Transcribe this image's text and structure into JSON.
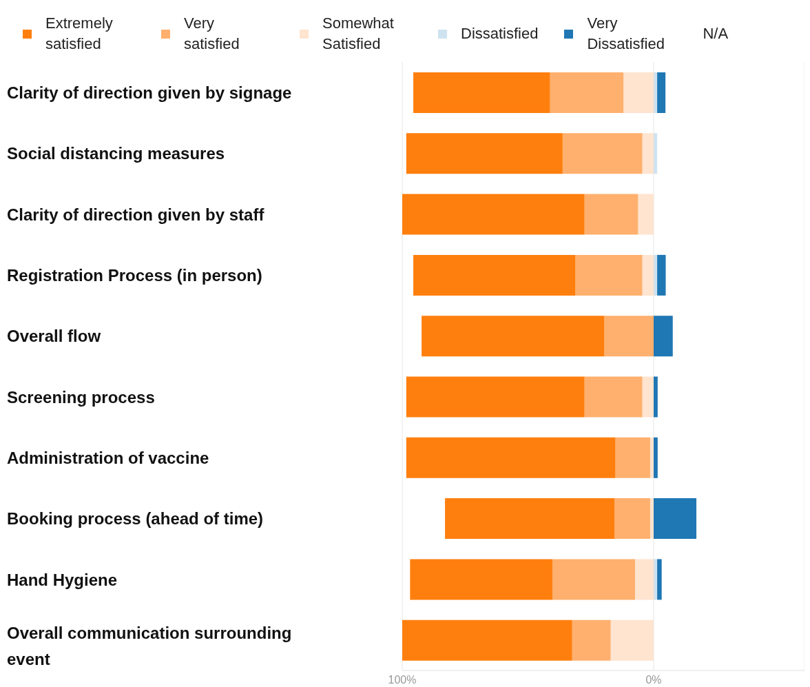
{
  "chart_data": {
    "type": "bar",
    "orientation": "horizontal",
    "stacked": true,
    "categories": [
      "Clarity of direction given by signage",
      "Social distancing measures",
      "Clarity of direction given by staff",
      "Registration Process (in person)",
      "Overall flow",
      "Screening process",
      "Administration of vaccine",
      "Booking process (ahead of time)",
      "Hand Hygiene",
      "Overall communication surrounding event"
    ],
    "series": [
      {
        "name": "Somewhat Satisfied",
        "color": "#ffe4cf",
        "values": [
          -12.0,
          -4.5,
          -6.2,
          -4.5,
          0,
          -4.5,
          -1.4,
          -1.4,
          -7.4,
          -17.1
        ]
      },
      {
        "name": "Very satisfied",
        "color": "#ffb06e",
        "values": [
          -29.2,
          -31.7,
          -21.3,
          -26.6,
          -19.6,
          -23.0,
          -13.8,
          -14.1,
          -32.8,
          -15.3
        ]
      },
      {
        "name": "Extremely satisfied",
        "color": "#ff7f0e",
        "values": [
          -54.4,
          -62.2,
          -72.5,
          -64.5,
          -72.7,
          -70.9,
          -83.2,
          -67.5,
          -56.7,
          -67.6
        ]
      },
      {
        "name": "Dissatisfied",
        "color": "#cfe2f0",
        "values": [
          1.4,
          1.4,
          0,
          1.4,
          0,
          0,
          0,
          0,
          1.4,
          0
        ]
      },
      {
        "name": "Very Dissatisfied",
        "color": "#1f77b4",
        "values": [
          3.3,
          0,
          0,
          3.4,
          7.6,
          1.6,
          1.6,
          17.0,
          1.8,
          0
        ]
      },
      {
        "name": "N/A",
        "values": [
          0,
          0,
          0,
          0,
          0,
          0,
          0,
          0,
          0,
          0
        ]
      }
    ],
    "xlim": [
      -100,
      60
    ],
    "xticks": [
      {
        "value": -100,
        "label": "100%"
      },
      {
        "value": 0,
        "label": "0%"
      }
    ],
    "grid": "x",
    "legend": "top"
  }
}
